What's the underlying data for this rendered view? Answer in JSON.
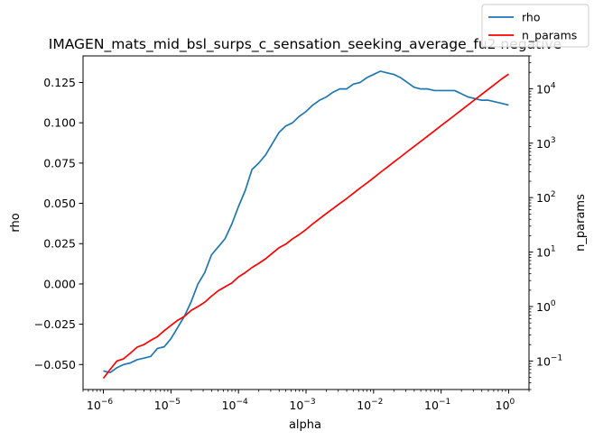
{
  "chart_data": {
    "type": "line",
    "title": "IMAGEN_mats_mid_bsl_surps_c_sensation_seeking_average_fu2 negative",
    "xlabel": "alpha",
    "ylabel_left": "rho",
    "ylabel_right": "n_params",
    "x_scale": "log",
    "x_range": [
      5e-07,
      2.0
    ],
    "y_left_range": [
      -0.0655,
      0.1415
    ],
    "y_right_scale": "log",
    "y_right_range": [
      0.03,
      40000
    ],
    "x_ticks": [
      {
        "exp": "-6"
      },
      {
        "exp": "-5"
      },
      {
        "exp": "-4"
      },
      {
        "exp": "-3"
      },
      {
        "exp": "-2"
      },
      {
        "exp": "-1"
      },
      {
        "exp": "0"
      }
    ],
    "y_left_ticks": [
      "-0.050",
      "-0.025",
      "0.000",
      "0.025",
      "0.050",
      "0.075",
      "0.100",
      "0.125"
    ],
    "y_right_ticks": [
      {
        "exp": "-1"
      },
      {
        "exp": "0"
      },
      {
        "exp": "1"
      },
      {
        "exp": "2"
      },
      {
        "exp": "3"
      },
      {
        "exp": "4"
      }
    ],
    "legend": {
      "placement": "top-right",
      "entries": [
        "rho",
        "n_params"
      ]
    },
    "grid": false,
    "series": [
      {
        "name": "rho",
        "axis": "left",
        "color": "#1f77b4",
        "log10_x": [
          -6.0,
          -5.9,
          -5.8,
          -5.7,
          -5.6,
          -5.5,
          -5.4,
          -5.3,
          -5.2,
          -5.1,
          -5.0,
          -4.9,
          -4.8,
          -4.7,
          -4.6,
          -4.5,
          -4.4,
          -4.3,
          -4.2,
          -4.1,
          -4.0,
          -3.9,
          -3.8,
          -3.7,
          -3.6,
          -3.5,
          -3.4,
          -3.3,
          -3.2,
          -3.1,
          -3.0,
          -2.9,
          -2.8,
          -2.7,
          -2.6,
          -2.5,
          -2.4,
          -2.3,
          -2.2,
          -2.1,
          -2.0,
          -1.9,
          -1.8,
          -1.7,
          -1.6,
          -1.5,
          -1.4,
          -1.3,
          -1.2,
          -1.1,
          -1.0,
          -0.9,
          -0.8,
          -0.7,
          -0.6,
          -0.5,
          -0.4,
          -0.3,
          -0.2,
          -0.1,
          0.0
        ],
        "values": [
          -0.054,
          -0.055,
          -0.052,
          -0.05,
          -0.049,
          -0.047,
          -0.046,
          -0.045,
          -0.04,
          -0.039,
          -0.034,
          -0.027,
          -0.02,
          -0.011,
          0.0,
          0.007,
          0.018,
          0.023,
          0.028,
          0.037,
          0.048,
          0.058,
          0.071,
          0.075,
          0.08,
          0.087,
          0.094,
          0.098,
          0.1,
          0.104,
          0.107,
          0.111,
          0.114,
          0.116,
          0.119,
          0.121,
          0.121,
          0.124,
          0.125,
          0.128,
          0.13,
          0.132,
          0.131,
          0.13,
          0.128,
          0.125,
          0.122,
          0.121,
          0.121,
          0.12,
          0.12,
          0.12,
          0.12,
          0.118,
          0.116,
          0.115,
          0.114,
          0.114,
          0.113,
          0.112,
          0.111
        ]
      },
      {
        "name": "n_params",
        "axis": "right",
        "color": "#ff0000",
        "log10_x": [
          -6.0,
          -5.9,
          -5.8,
          -5.7,
          -5.6,
          -5.5,
          -5.4,
          -5.3,
          -5.2,
          -5.1,
          -5.0,
          -4.9,
          -4.8,
          -4.7,
          -4.6,
          -4.5,
          -4.4,
          -4.3,
          -4.2,
          -4.1,
          -4.0,
          -3.9,
          -3.8,
          -3.7,
          -3.6,
          -3.5,
          -3.4,
          -3.3,
          -3.2,
          -3.1,
          -3.0,
          -2.9,
          -2.8,
          -2.7,
          -2.6,
          -2.5,
          -2.4,
          -2.3,
          -2.2,
          -2.1,
          -2.0,
          -1.9,
          -1.8,
          -1.7,
          -1.6,
          -1.5,
          -1.4,
          -1.3,
          -1.2,
          -1.1,
          -1.0,
          -0.9,
          -0.8,
          -0.7,
          -0.6,
          -0.5,
          -0.4,
          -0.3,
          -0.2,
          -0.1,
          0.0
        ],
        "values": [
          0.048,
          0.07,
          0.1,
          0.11,
          0.14,
          0.18,
          0.2,
          0.24,
          0.28,
          0.36,
          0.45,
          0.56,
          0.66,
          0.85,
          1.0,
          1.2,
          1.55,
          1.95,
          2.3,
          2.7,
          3.5,
          4.2,
          5.2,
          6.2,
          7.5,
          9.5,
          12,
          14,
          17.5,
          21,
          26,
          33,
          41,
          51,
          63,
          78,
          96,
          120,
          150,
          185,
          230,
          290,
          360,
          450,
          560,
          700,
          870,
          1080,
          1350,
          1680,
          2100,
          2600,
          3250,
          4050,
          5050,
          6300,
          7850,
          9800,
          12200,
          15200,
          18500
        ]
      }
    ]
  }
}
